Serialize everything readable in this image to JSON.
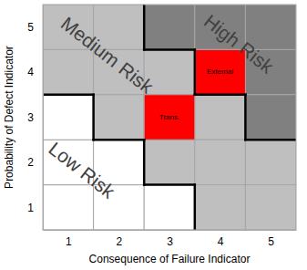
{
  "chart_data": {
    "type": "heatmap",
    "xlabel": "Consequence of Failure Indicator",
    "ylabel": "Probability of Defect Indicator",
    "xlim": [
      0.5,
      5.5
    ],
    "ylim": [
      0.5,
      5.5
    ],
    "xticks": [
      1,
      2,
      3,
      4,
      5
    ],
    "yticks": [
      1,
      2,
      3,
      4,
      5
    ],
    "zones": [
      {
        "label": "Low Risk",
        "color": "#ffffff",
        "cells": [
          [
            1,
            1
          ],
          [
            2,
            1
          ],
          [
            3,
            1
          ],
          [
            1,
            2
          ],
          [
            2,
            2
          ],
          [
            1,
            3
          ]
        ]
      },
      {
        "label": "Medium Risk",
        "color": "#bfbfbf",
        "cells": [
          [
            1,
            5
          ],
          [
            2,
            5
          ],
          [
            1,
            4
          ],
          [
            2,
            4
          ],
          [
            3,
            4
          ],
          [
            2,
            3
          ],
          [
            3,
            3
          ],
          [
            4,
            3
          ],
          [
            3,
            2
          ],
          [
            4,
            2
          ],
          [
            5,
            2
          ],
          [
            4,
            1
          ],
          [
            5,
            1
          ]
        ]
      },
      {
        "label": "High Risk",
        "color": "#808080",
        "cells": [
          [
            3,
            5
          ],
          [
            4,
            5
          ],
          [
            5,
            5
          ],
          [
            4,
            4
          ],
          [
            5,
            4
          ],
          [
            5,
            3
          ]
        ]
      }
    ],
    "items": [
      {
        "label": "Trans.",
        "x": 3,
        "y": 3,
        "color": "#ff0000"
      },
      {
        "label": "External",
        "x": 4,
        "y": 4,
        "color": "#ff0000"
      }
    ]
  }
}
